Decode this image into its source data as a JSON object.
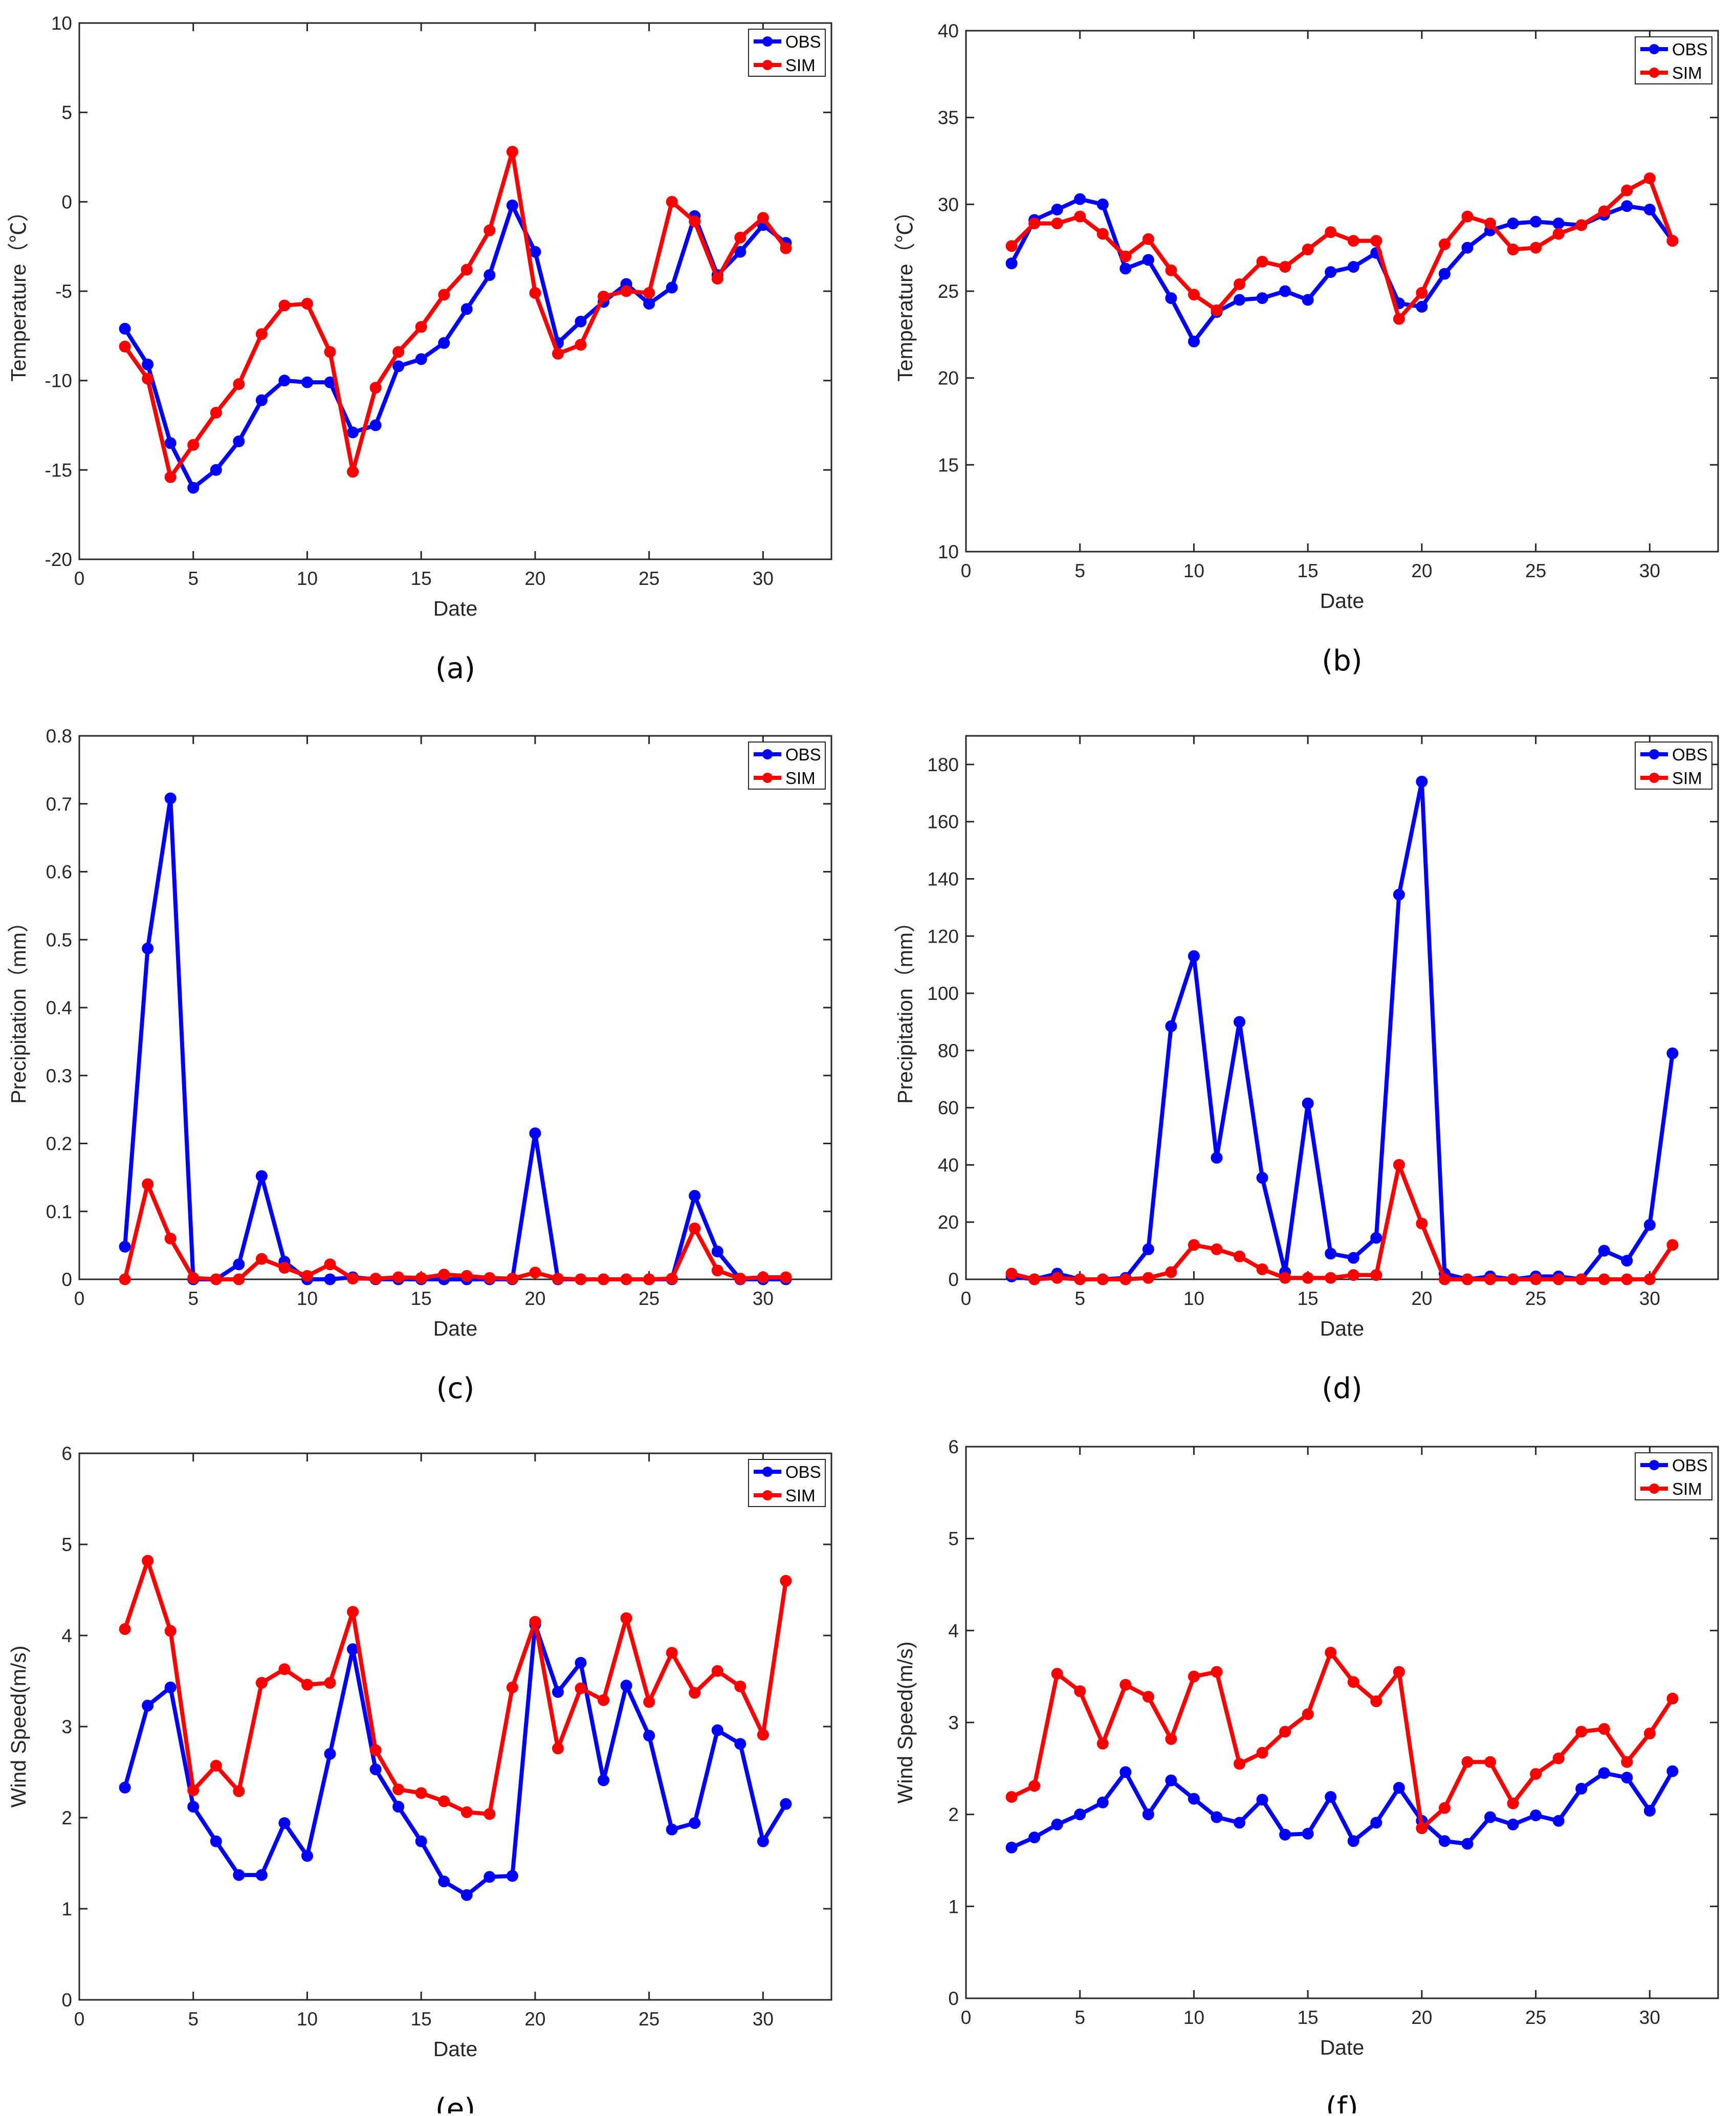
{
  "chart_data": [
    {
      "panel": "(a)",
      "type": "line",
      "xlabel": "Date",
      "ylabel": "Temperature（℃）",
      "xlim": [
        0,
        33
      ],
      "ylim": [
        -20,
        10
      ],
      "xticks": [
        "0",
        "5",
        "10",
        "15",
        "20",
        "25",
        "30"
      ],
      "yticks": [
        "-20",
        "-15",
        "-10",
        "-5",
        "0",
        "5",
        "10"
      ],
      "legend": "top-right",
      "x": [
        2,
        3,
        4,
        5,
        6,
        7,
        8,
        9,
        10,
        11,
        12,
        13,
        14,
        15,
        16,
        17,
        18,
        19,
        20,
        21,
        22,
        23,
        24,
        25,
        26,
        27,
        28,
        29,
        30,
        31
      ],
      "series": [
        {
          "name": "OBS",
          "color": "#0000ff",
          "values": [
            -7.1,
            -9.1,
            -13.5,
            -16,
            -15,
            -13.4,
            -11.1,
            -10,
            -10.1,
            -10.1,
            -12.9,
            -12.5,
            -9.2,
            -8.8,
            -7.9,
            -6,
            -4.1,
            -0.2,
            -2.8,
            -7.9,
            -6.7,
            -5.6,
            -4.6,
            -5.7,
            -4.8,
            -0.8,
            -4.1,
            -2.8,
            -1.3,
            -2.3
          ]
        },
        {
          "name": "SIM",
          "color": "#ff0000",
          "values": [
            -8.1,
            -9.9,
            -15.4,
            -13.6,
            -11.8,
            -10.2,
            -7.4,
            -5.8,
            -5.7,
            -8.4,
            -15.1,
            -10.4,
            -8.4,
            -7,
            -5.2,
            -3.8,
            -1.6,
            2.8,
            -5.1,
            -8.5,
            -8,
            -5.3,
            -5,
            -5.1,
            0,
            -1.1,
            -4.3,
            -2,
            -0.9,
            -2.6
          ]
        }
      ]
    },
    {
      "panel": "(b)",
      "type": "line",
      "xlabel": "Date",
      "ylabel": "Temperature（℃）",
      "xlim": [
        0,
        33
      ],
      "ylim": [
        10,
        40
      ],
      "xticks": [
        "0",
        "5",
        "10",
        "15",
        "20",
        "25",
        "30"
      ],
      "yticks": [
        "10",
        "15",
        "20",
        "25",
        "30",
        "35",
        "40"
      ],
      "legend": "top-right",
      "x": [
        2,
        3,
        4,
        5,
        6,
        7,
        8,
        9,
        10,
        11,
        12,
        13,
        14,
        15,
        16,
        17,
        18,
        19,
        20,
        21,
        22,
        23,
        24,
        25,
        26,
        27,
        28,
        29,
        30,
        31
      ],
      "series": [
        {
          "name": "OBS",
          "color": "#0000ff",
          "values": [
            26.6,
            29.1,
            29.7,
            30.3,
            30,
            26.3,
            26.8,
            24.6,
            22.1,
            23.8,
            24.5,
            24.6,
            25,
            24.5,
            26.1,
            26.4,
            27.2,
            24.3,
            24.1,
            26,
            27.5,
            28.5,
            28.9,
            29,
            28.9,
            28.8,
            29.4,
            29.9,
            29.7,
            27.9
          ]
        },
        {
          "name": "SIM",
          "color": "#ff0000",
          "values": [
            27.6,
            28.9,
            28.9,
            29.3,
            28.3,
            27,
            28,
            26.2,
            24.8,
            23.9,
            25.4,
            26.7,
            26.4,
            27.4,
            28.4,
            27.9,
            27.9,
            23.4,
            24.9,
            27.7,
            29.3,
            28.9,
            27.4,
            27.5,
            28.3,
            28.8,
            29.6,
            30.8,
            31.5,
            27.9
          ]
        }
      ]
    },
    {
      "panel": "(c)",
      "type": "line",
      "xlabel": "Date",
      "ylabel": "Precipitation（mm）",
      "xlim": [
        0,
        33
      ],
      "ylim": [
        0,
        0.8
      ],
      "xticks": [
        "0",
        "5",
        "10",
        "15",
        "20",
        "25",
        "30"
      ],
      "yticks": [
        "0",
        "0.1",
        "0.2",
        "0.3",
        "0.4",
        "0.5",
        "0.6",
        "0.7",
        "0.8"
      ],
      "legend": "top-right",
      "x": [
        2,
        3,
        4,
        5,
        6,
        7,
        8,
        9,
        10,
        11,
        12,
        13,
        14,
        15,
        16,
        17,
        18,
        19,
        20,
        21,
        22,
        23,
        24,
        25,
        26,
        27,
        28,
        29,
        30,
        31
      ],
      "series": [
        {
          "name": "OBS",
          "color": "#0000ff",
          "values": [
            0.048,
            0.487,
            0.708,
            0,
            0,
            0.022,
            0.152,
            0.026,
            0,
            0,
            0.003,
            0,
            0,
            0,
            0,
            0,
            0,
            0,
            0.215,
            0,
            0,
            0,
            0,
            0,
            0,
            0.123,
            0.041,
            0,
            0,
            0
          ]
        },
        {
          "name": "SIM",
          "color": "#ff0000",
          "values": [
            0,
            0.14,
            0.06,
            0.002,
            0,
            0,
            0.03,
            0.017,
            0.005,
            0.022,
            0.001,
            0.001,
            0.003,
            0.002,
            0.007,
            0.005,
            0.002,
            0.001,
            0.01,
            0.001,
            0,
            0,
            0,
            0,
            0.001,
            0.075,
            0.013,
            0.001,
            0.003,
            0.003
          ]
        }
      ]
    },
    {
      "panel": "(d)",
      "type": "line",
      "xlabel": "Date",
      "ylabel": "Precipitation（mm）",
      "xlim": [
        0,
        33
      ],
      "ylim": [
        0,
        190
      ],
      "xticks": [
        "0",
        "5",
        "10",
        "15",
        "20",
        "25",
        "30"
      ],
      "yticks": [
        "0",
        "20",
        "40",
        "60",
        "80",
        "100",
        "120",
        "140",
        "160",
        "180"
      ],
      "legend": "top-right",
      "x": [
        2,
        3,
        4,
        5,
        6,
        7,
        8,
        9,
        10,
        11,
        12,
        13,
        14,
        15,
        16,
        17,
        18,
        19,
        20,
        21,
        22,
        23,
        24,
        25,
        26,
        27,
        28,
        29,
        30,
        31
      ],
      "series": [
        {
          "name": "OBS",
          "color": "#0000ff",
          "values": [
            1,
            0,
            2,
            0,
            0,
            0.5,
            10.5,
            88.5,
            113,
            42.5,
            90,
            35.5,
            2.5,
            61.5,
            9,
            7.5,
            14.5,
            134.5,
            174,
            2,
            0,
            1,
            0,
            1,
            1,
            0,
            10,
            6.5,
            19,
            79
          ]
        },
        {
          "name": "SIM",
          "color": "#ff0000",
          "values": [
            2,
            0,
            0.5,
            0,
            0,
            0,
            0.5,
            2.5,
            12,
            10.5,
            8,
            3.5,
            0.5,
            0.5,
            0.5,
            1.5,
            1.5,
            40,
            19.5,
            0,
            0,
            0,
            0,
            0,
            0,
            0,
            0,
            0,
            0,
            12
          ]
        }
      ]
    },
    {
      "panel": "(e)",
      "type": "line",
      "xlabel": "Date",
      "ylabel": "Wind Speed(m/s)",
      "xlim": [
        0,
        33
      ],
      "ylim": [
        0,
        6
      ],
      "xticks": [
        "0",
        "5",
        "10",
        "15",
        "20",
        "25",
        "30"
      ],
      "yticks": [
        "0",
        "1",
        "2",
        "3",
        "4",
        "5",
        "6"
      ],
      "legend": "top-right",
      "x": [
        2,
        3,
        4,
        5,
        6,
        7,
        8,
        9,
        10,
        11,
        12,
        13,
        14,
        15,
        16,
        17,
        18,
        19,
        20,
        21,
        22,
        23,
        24,
        25,
        26,
        27,
        28,
        29,
        30,
        31
      ],
      "series": [
        {
          "name": "OBS",
          "color": "#0000ff",
          "values": [
            2.33,
            3.23,
            3.43,
            2.12,
            1.74,
            1.37,
            1.37,
            1.94,
            1.58,
            2.7,
            3.85,
            2.53,
            2.12,
            1.74,
            1.3,
            1.15,
            1.35,
            1.36,
            4.12,
            3.38,
            3.7,
            2.41,
            3.45,
            2.9,
            1.87,
            1.94,
            2.96,
            2.81,
            1.74,
            2.15
          ]
        },
        {
          "name": "SIM",
          "color": "#ff0000",
          "values": [
            4.07,
            4.82,
            4.05,
            2.3,
            2.57,
            2.29,
            3.48,
            3.63,
            3.46,
            3.48,
            4.26,
            2.74,
            2.31,
            2.27,
            2.18,
            2.06,
            2.04,
            3.43,
            4.15,
            2.76,
            3.42,
            3.29,
            4.19,
            3.27,
            3.81,
            3.37,
            3.61,
            3.44,
            2.91,
            4.6
          ]
        }
      ]
    },
    {
      "panel": "(f)",
      "type": "line",
      "xlabel": "Date",
      "ylabel": "Wind Speed(m/s)",
      "xlim": [
        0,
        33
      ],
      "ylim": [
        0,
        6
      ],
      "xticks": [
        "0",
        "5",
        "10",
        "15",
        "20",
        "25",
        "30"
      ],
      "yticks": [
        "0",
        "1",
        "2",
        "3",
        "4",
        "5",
        "6"
      ],
      "legend": "top-right",
      "x": [
        2,
        3,
        4,
        5,
        6,
        7,
        8,
        9,
        10,
        11,
        12,
        13,
        14,
        15,
        16,
        17,
        18,
        19,
        20,
        21,
        22,
        23,
        24,
        25,
        26,
        27,
        28,
        29,
        30,
        31
      ],
      "series": [
        {
          "name": "OBS",
          "color": "#0000ff",
          "values": [
            1.64,
            1.75,
            1.89,
            2,
            2.13,
            2.46,
            2,
            2.37,
            2.17,
            1.97,
            1.91,
            2.16,
            1.78,
            1.79,
            2.19,
            1.71,
            1.91,
            2.29,
            1.93,
            1.71,
            1.68,
            1.97,
            1.89,
            1.99,
            1.93,
            2.28,
            2.45,
            2.4,
            2.04,
            2.47
          ]
        },
        {
          "name": "SIM",
          "color": "#ff0000",
          "values": [
            2.19,
            2.31,
            3.53,
            3.34,
            2.77,
            3.41,
            3.28,
            2.82,
            3.5,
            3.55,
            2.55,
            2.67,
            2.9,
            3.09,
            3.76,
            3.44,
            3.23,
            3.55,
            1.85,
            2.07,
            2.57,
            2.57,
            2.12,
            2.44,
            2.61,
            2.9,
            2.93,
            2.57,
            2.88,
            3.26
          ]
        }
      ]
    }
  ]
}
